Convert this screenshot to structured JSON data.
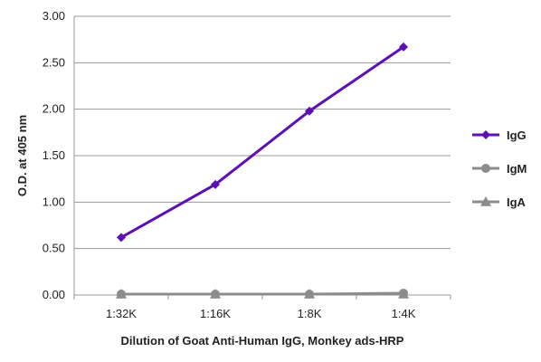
{
  "chart_data": {
    "type": "line",
    "categories": [
      "1:32K",
      "1:16K",
      "1:8K",
      "1:4K"
    ],
    "series": [
      {
        "name": "IgG",
        "values": [
          0.62,
          1.19,
          1.98,
          2.67
        ],
        "color": "#5b0fb5",
        "marker": "diamond"
      },
      {
        "name": "IgM",
        "values": [
          0.01,
          0.01,
          0.01,
          0.02
        ],
        "color": "#8c8c8c",
        "marker": "circle"
      },
      {
        "name": "IgA",
        "values": [
          0.01,
          0.01,
          0.01,
          0.01
        ],
        "color": "#8c8c8c",
        "marker": "triangle"
      }
    ],
    "y_ticks": [
      "0.00",
      "0.50",
      "1.00",
      "1.50",
      "2.00",
      "2.50",
      "3.00"
    ],
    "ylim": [
      0,
      3
    ],
    "xlabel": "Dilution of Goat Anti-Human IgG, Monkey ads-HRP",
    "ylabel": "O.D. at 405 nm",
    "grid": true,
    "legend_position": "right"
  }
}
